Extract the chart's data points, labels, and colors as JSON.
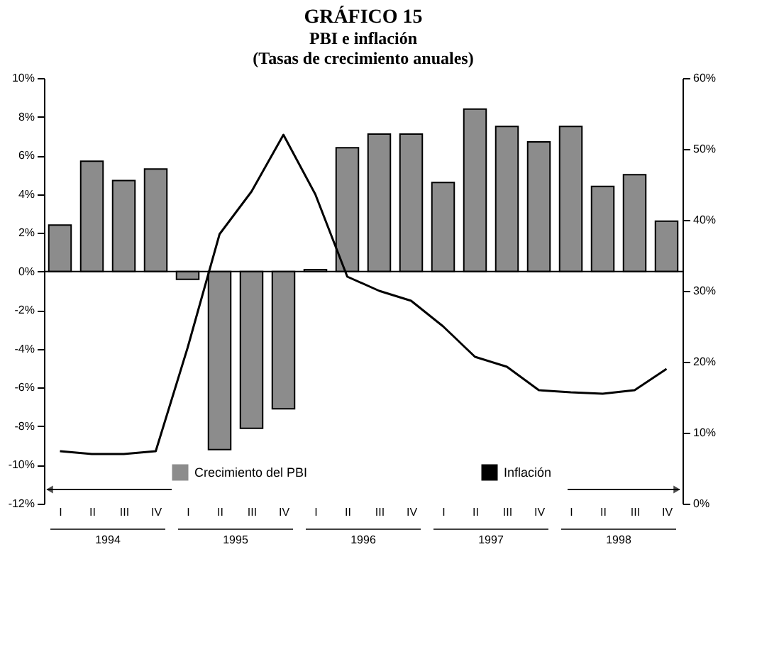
{
  "chart_data": {
    "type": "bar",
    "title": "GRÁFICO 15",
    "subtitle": "PBI e inflación\n(Tasas de crecimiento anuales)",
    "categories": [
      "I",
      "II",
      "III",
      "IV",
      "I",
      "II",
      "III",
      "IV",
      "I",
      "II",
      "III",
      "IV",
      "I",
      "II",
      "III",
      "IV",
      "I",
      "II",
      "III",
      "IV"
    ],
    "series": [
      {
        "name": "Crecimiento del PBI",
        "color": "#8c8c8c",
        "values": [
          2.4,
          5.7,
          4.7,
          5.3,
          -0.4,
          -9.2,
          -8.1,
          -7.1,
          0.1,
          6.4,
          7.1,
          7.1,
          4.6,
          8.4,
          7.5,
          6.7,
          7.5,
          4.4,
          5.0,
          2.6
        ]
      },
      {
        "name": "Inflación",
        "type": "line",
        "axis": "y2",
        "color": "#000000",
        "values": [
          7.4,
          7.0,
          7.0,
          7.4,
          22,
          38,
          44,
          52,
          43.6,
          32,
          30,
          28.6,
          25,
          20.7,
          19.3,
          16,
          15.7,
          15.5,
          16,
          19
        ]
      }
    ],
    "annotations": [
      "1994",
      "1995",
      "1996",
      "1997",
      "1998"
    ],
    "ylim": [
      -12,
      10
    ],
    "yticks": [
      {
        "value": -12,
        "label": "-12%"
      },
      {
        "value": -10,
        "label": "-10%"
      },
      {
        "value": -8,
        "label": "-8%"
      },
      {
        "value": -6,
        "label": "-6%"
      },
      {
        "value": -4,
        "label": "-4%"
      },
      {
        "value": -2,
        "label": "-2%"
      },
      {
        "value": 0,
        "label": "0%"
      },
      {
        "value": 2,
        "label": "2%"
      },
      {
        "value": 4,
        "label": "4%"
      },
      {
        "value": 6,
        "label": "6%"
      },
      {
        "value": 8,
        "label": "8%"
      },
      {
        "value": 10,
        "label": "10%"
      }
    ],
    "y2lim": [
      0,
      60
    ],
    "y2ticks": [
      {
        "value": 0,
        "label": "0%"
      },
      {
        "value": 10,
        "label": "10%"
      },
      {
        "value": 20,
        "label": "20%"
      },
      {
        "value": 30,
        "label": "30%"
      },
      {
        "value": 40,
        "label": "40%"
      },
      {
        "value": 50,
        "label": "50%"
      },
      {
        "value": 60,
        "label": "60%"
      }
    ],
    "ref_lines": [
      {
        "axis": "y",
        "value": 0,
        "color": "#000000",
        "line_style": "solid"
      }
    ],
    "grid": false,
    "legend": "bottom",
    "marker": "none",
    "line_style": "solid"
  }
}
